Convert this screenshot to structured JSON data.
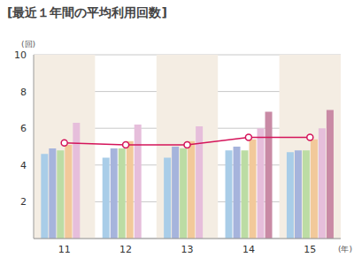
{
  "chart_data": {
    "type": "bar",
    "title": "[最近１年間の平均利用回数]",
    "ylabel": "(回)",
    "xlabel": "(年)",
    "categories": [
      "11",
      "12",
      "13",
      "14",
      "15"
    ],
    "series": [
      {
        "color": "#a9cde8",
        "values": [
          4.6,
          4.4,
          4.4,
          4.8,
          4.7
        ]
      },
      {
        "color": "#a6b4dc",
        "values": [
          4.9,
          4.9,
          5.0,
          5.0,
          4.8
        ]
      },
      {
        "color": "#bcdca4",
        "values": [
          4.8,
          4.9,
          4.9,
          4.8,
          4.8
        ]
      },
      {
        "color": "#f2c99a",
        "values": [
          5.1,
          5.3,
          5.3,
          5.4,
          5.4
        ]
      },
      {
        "color": "#e6bedb",
        "values": [
          6.3,
          6.2,
          6.1,
          6.0,
          6.0
        ]
      },
      {
        "color": "#c98aa5",
        "values": [
          null,
          null,
          null,
          6.9,
          7.0
        ]
      },
      {
        "type": "line",
        "color": "#d4145a",
        "marker": "circle",
        "values": [
          5.2,
          5.1,
          5.1,
          5.5,
          5.5
        ]
      }
    ],
    "ylim": [
      0,
      10
    ],
    "yticks": [
      2,
      4,
      6,
      8,
      10
    ],
    "grid": true
  }
}
